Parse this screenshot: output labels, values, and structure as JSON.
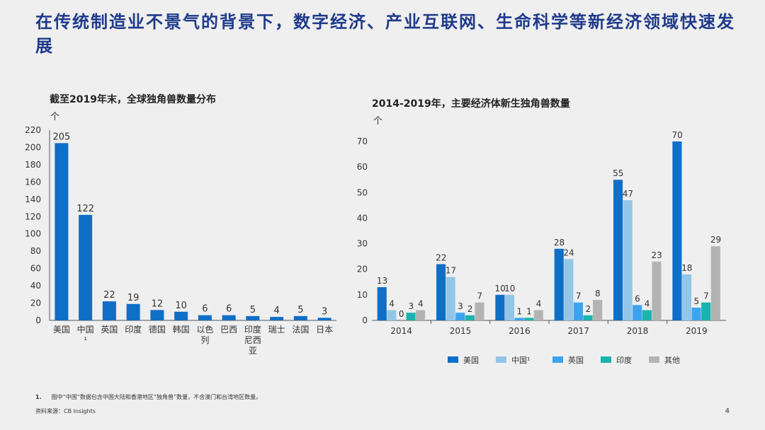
{
  "page": {
    "title": "在传统制造业不景气的背景下，数字经济、产业互联网、生命科学等新经济领域快速发展",
    "footnote_num": "1.",
    "footnote": "图中“中国”数据包含中国大陆和香港地区“独角兽”数量，不含澳门和台湾地区数量。",
    "source": "资料来源：CB Insights",
    "page_number": "4"
  },
  "left_chart": {
    "title": "截至2019年末，全球独角兽数量分布",
    "unit": "个"
  },
  "right_chart": {
    "title": "2014-2019年，主要经济体新生独角兽数量",
    "unit": "个"
  },
  "chart_data": [
    {
      "type": "bar",
      "title": "截至2019年末，全球独角兽数量分布",
      "ylabel": "个",
      "categories": [
        "美国",
        "中国¹",
        "英国",
        "印度",
        "德国",
        "韩国",
        "以色列",
        "巴西",
        "印度尼西亚",
        "瑞士",
        "法国",
        "日本"
      ],
      "values": [
        205,
        122,
        22,
        19,
        12,
        10,
        6,
        6,
        5,
        4,
        5,
        3
      ],
      "ylim": [
        0,
        220
      ],
      "yticks": [
        0,
        20,
        40,
        60,
        80,
        100,
        120,
        140,
        160,
        180,
        200,
        220
      ],
      "color": "#0f6fc6",
      "grid": false
    },
    {
      "type": "bar",
      "title": "2014-2019年，主要经济体新生独角兽数量",
      "ylabel": "个",
      "categories": [
        "2014",
        "2015",
        "2016",
        "2017",
        "2018",
        "2019"
      ],
      "series": [
        {
          "name": "美国",
          "color": "#0f6fc6",
          "values": [
            13,
            22,
            10,
            28,
            55,
            70
          ]
        },
        {
          "name": "中国¹",
          "color": "#93c6e6",
          "values": [
            4,
            17,
            10,
            24,
            47,
            18
          ]
        },
        {
          "name": "英国",
          "color": "#3ea3ee",
          "values": [
            0,
            3,
            1,
            7,
            6,
            5
          ]
        },
        {
          "name": "印度",
          "color": "#1bb3ae",
          "values": [
            3,
            2,
            1,
            2,
            4,
            7
          ]
        },
        {
          "name": "其他",
          "color": "#b3b3b3",
          "values": [
            4,
            7,
            4,
            8,
            23,
            29
          ]
        }
      ],
      "ylim": [
        0,
        70
      ],
      "yticks": [
        0,
        10,
        20,
        30,
        40,
        50,
        60,
        70
      ],
      "legend_position": "bottom",
      "grid": false
    }
  ]
}
